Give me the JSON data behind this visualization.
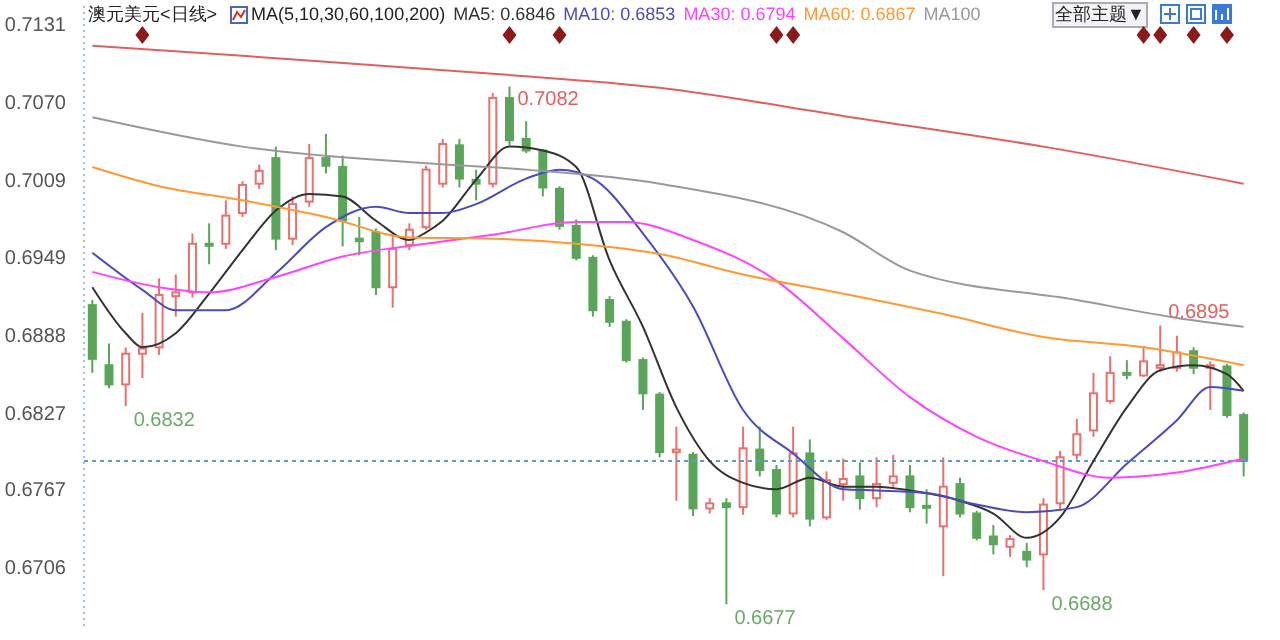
{
  "chart_data": {
    "type": "candlestick",
    "title": "澳元美元<日线>",
    "annotations": [
      "MA(5,10,30,60,100,200)",
      "全部主题▼",
      {
        "text": "0.7082",
        "y": 0.7082
      },
      "0.6832",
      "0.6677",
      "0.6688",
      {
        "text": "0.6895",
        "y": 0.6895
      }
    ],
    "categories": [
      null,
      null,
      null,
      null,
      null,
      null,
      null,
      null,
      null,
      null,
      null,
      null,
      null,
      null,
      null,
      null,
      null,
      null,
      null,
      null,
      null,
      null,
      null,
      null,
      null,
      null,
      null,
      null,
      null,
      null,
      null,
      null,
      null,
      null,
      null,
      null,
      null,
      null,
      null,
      null,
      null,
      null,
      null,
      null,
      null,
      null,
      null,
      null,
      null,
      null,
      null,
      null,
      null,
      null,
      null,
      null,
      null,
      null,
      null,
      null,
      null,
      null,
      null,
      null,
      null,
      null,
      null,
      null,
      null,
      null
    ],
    "ohlc": [
      [
        0.6911,
        0.6915,
        0.6858,
        0.6869
      ],
      [
        0.6864,
        0.6881,
        0.6846,
        0.6849
      ],
      [
        0.6849,
        0.6878,
        0.6832,
        0.6873
      ],
      [
        0.6873,
        0.6905,
        0.6854,
        0.6877
      ],
      [
        0.6878,
        0.6932,
        0.6872,
        0.6919
      ],
      [
        0.6918,
        0.6935,
        0.6902,
        0.6921
      ],
      [
        0.6921,
        0.6967,
        0.6917,
        0.6959
      ],
      [
        0.6959,
        0.6975,
        0.6943,
        0.6958
      ],
      [
        0.6959,
        0.6993,
        0.6955,
        0.6981
      ],
      [
        0.6983,
        0.7008,
        0.698,
        0.7005
      ],
      [
        0.7006,
        0.7021,
        0.7002,
        0.7016
      ],
      [
        0.7026,
        0.7035,
        0.6954,
        0.6963
      ],
      [
        0.6963,
        0.6996,
        0.6958,
        0.699
      ],
      [
        0.6992,
        0.7037,
        0.6988,
        0.7026
      ],
      [
        0.7026,
        0.7045,
        0.7014,
        0.702
      ],
      [
        0.7019,
        0.7028,
        0.6957,
        0.6977
      ],
      [
        0.6963,
        0.698,
        0.695,
        0.6961
      ],
      [
        0.6968,
        0.6971,
        0.6919,
        0.6925
      ],
      [
        0.6925,
        0.6967,
        0.6909,
        0.6955
      ],
      [
        0.6958,
        0.6975,
        0.6954,
        0.697
      ],
      [
        0.6972,
        0.702,
        0.697,
        0.7017
      ],
      [
        0.7006,
        0.7041,
        0.7003,
        0.7037
      ],
      [
        0.7036,
        0.7041,
        0.7003,
        0.701
      ],
      [
        0.7009,
        0.7017,
        0.6993,
        0.7006
      ],
      [
        0.7006,
        0.7077,
        0.7003,
        0.7073
      ],
      [
        0.7073,
        0.7082,
        0.7036,
        0.704
      ],
      [
        0.7041,
        0.7055,
        0.703,
        0.7032
      ],
      [
        0.7032,
        0.7033,
        0.6996,
        0.7003
      ],
      [
        0.7002,
        0.7004,
        0.697,
        0.6973
      ],
      [
        0.6973,
        0.6978,
        0.6946,
        0.6948
      ],
      [
        0.6948,
        0.695,
        0.6902,
        0.6907
      ],
      [
        0.6915,
        0.6918,
        0.6894,
        0.6898
      ],
      [
        0.6898,
        0.69,
        0.6866,
        0.6868
      ],
      [
        0.6868,
        0.687,
        0.6829,
        0.6842
      ],
      [
        0.6841,
        0.6843,
        0.6792,
        0.6796
      ],
      [
        0.6796,
        0.6816,
        0.6758,
        0.6798
      ],
      [
        0.6794,
        0.6796,
        0.6746,
        0.6752
      ],
      [
        0.6752,
        0.676,
        0.6748,
        0.6756
      ],
      [
        0.6756,
        0.676,
        0.6677,
        0.6753
      ],
      [
        0.6753,
        0.6816,
        0.6747,
        0.6799
      ],
      [
        0.6798,
        0.6816,
        0.6777,
        0.6782
      ],
      [
        0.6782,
        0.6786,
        0.6745,
        0.6748
      ],
      [
        0.6748,
        0.6816,
        0.6745,
        0.6795
      ],
      [
        0.6795,
        0.6806,
        0.6738,
        0.6744
      ],
      [
        0.6745,
        0.6781,
        0.6743,
        0.6774
      ],
      [
        0.6771,
        0.6791,
        0.6758,
        0.6775
      ],
      [
        0.6777,
        0.6788,
        0.6751,
        0.676
      ],
      [
        0.676,
        0.6792,
        0.6753,
        0.6771
      ],
      [
        0.6772,
        0.6794,
        0.6768,
        0.6777
      ],
      [
        0.6777,
        0.6786,
        0.6749,
        0.6753
      ],
      [
        0.6754,
        0.6767,
        0.674,
        0.6753
      ],
      [
        0.6738,
        0.6792,
        0.6699,
        0.6769
      ],
      [
        0.6771,
        0.6776,
        0.6745,
        0.6748
      ],
      [
        0.6748,
        0.675,
        0.6727,
        0.6729
      ],
      [
        0.673,
        0.6739,
        0.6716,
        0.6724
      ],
      [
        0.6722,
        0.6731,
        0.6714,
        0.6728
      ],
      [
        0.6718,
        0.6725,
        0.6706,
        0.6712
      ],
      [
        0.6716,
        0.676,
        0.6688,
        0.6755
      ],
      [
        0.6756,
        0.6797,
        0.675,
        0.6792
      ],
      [
        0.6794,
        0.6822,
        0.679,
        0.681
      ],
      [
        0.6813,
        0.6858,
        0.6808,
        0.6842
      ],
      [
        0.6836,
        0.6871,
        0.6834,
        0.6858
      ],
      [
        0.6858,
        0.6868,
        0.6853,
        0.6857
      ],
      [
        0.6856,
        0.6879,
        0.6855,
        0.6867
      ],
      [
        0.6862,
        0.6895,
        0.6859,
        0.6864
      ],
      [
        0.6862,
        0.6887,
        0.6859,
        0.6874
      ],
      [
        0.6875,
        0.6878,
        0.6857,
        0.6862
      ],
      [
        0.6862,
        0.6867,
        0.6829,
        0.6864
      ],
      [
        0.6863,
        0.6865,
        0.6823,
        0.6825
      ],
      [
        0.6825,
        0.6827,
        0.6777,
        0.6789
      ]
    ],
    "series": [
      {
        "type": "line",
        "name": "MA5: 0.6846",
        "color": "#333333",
        "values": [
          0.6925,
          null,
          0.6889,
          0.6878,
          null,
          0.6889,
          null,
          0.692,
          null,
          0.6954,
          null,
          0.6985,
          null,
          0.6998,
          null,
          0.6996,
          null,
          0.6977,
          null,
          0.6962,
          0.6968,
          0.6977,
          null,
          0.7009,
          null,
          0.7035,
          null,
          0.7032,
          null,
          0.7019,
          null,
          0.6946,
          null,
          0.6894,
          null,
          0.6831,
          null,
          0.6789,
          null,
          0.6772,
          null,
          0.6767,
          null,
          0.6776,
          null,
          0.6769,
          null,
          0.6769,
          null,
          0.6766,
          null,
          null,
          0.6758,
          null,
          0.6748,
          null,
          0.6729,
          null,
          0.6745,
          null,
          0.6789,
          null,
          0.6831,
          null,
          0.686,
          null,
          0.6864,
          null,
          0.6857,
          0.6844
        ]
      },
      {
        "type": "line",
        "name": "MA10: 0.6853",
        "color": "#4b4bc0",
        "values": [
          0.6952,
          null,
          null,
          0.6923,
          null,
          0.6907,
          null,
          null,
          0.6907,
          null,
          null,
          0.6936,
          null,
          null,
          0.6972,
          null,
          null,
          0.6988,
          null,
          0.6983,
          null,
          0.6983,
          null,
          0.699,
          null,
          null,
          0.701,
          null,
          0.7017,
          null,
          0.701,
          null,
          null,
          0.6967,
          null,
          null,
          0.691,
          null,
          null,
          0.6829,
          null,
          null,
          0.6795,
          null,
          null,
          0.6767,
          null,
          0.6766,
          null,
          null,
          0.6764,
          null,
          null,
          0.6755,
          null,
          null,
          0.6749,
          null,
          null,
          0.6753,
          null,
          null,
          0.6787,
          null,
          null,
          0.6821,
          null,
          0.6847,
          null,
          0.6844
        ]
      },
      {
        "type": "line",
        "name": "MA30: 0.6794",
        "color": "#ff44ff",
        "values": [
          0.6937,
          null,
          null,
          null,
          0.6925,
          null,
          null,
          0.6921,
          null,
          null,
          null,
          0.6933,
          null,
          null,
          null,
          0.6949,
          null,
          null,
          null,
          null,
          0.6959,
          null,
          null,
          null,
          0.6966,
          null,
          null,
          null,
          null,
          0.6976,
          null,
          null,
          0.6976,
          null,
          null,
          null,
          0.6962,
          null,
          null,
          null,
          null,
          0.693,
          null,
          null,
          null,
          0.6885,
          null,
          null,
          null,
          0.6839,
          null,
          null,
          null,
          0.6808,
          null,
          null,
          null,
          0.6789,
          null,
          null,
          null,
          0.6776,
          null,
          null,
          null,
          0.678,
          null,
          null,
          null,
          0.6791
        ]
      },
      {
        "type": "line",
        "name": "MA60: 0.6867",
        "color": "#ff9933",
        "values": [
          0.7019,
          null,
          null,
          null,
          0.7004,
          null,
          null,
          null,
          null,
          0.6993,
          null,
          null,
          null,
          null,
          0.698,
          null,
          null,
          null,
          null,
          0.6964,
          null,
          null,
          null,
          null,
          0.6963,
          null,
          null,
          null,
          null,
          0.6959,
          null,
          null,
          null,
          null,
          0.6951,
          null,
          null,
          null,
          null,
          0.6935,
          null,
          null,
          null,
          null,
          null,
          0.692,
          null,
          null,
          null,
          null,
          null,
          0.6904,
          null,
          null,
          null,
          null,
          null,
          0.6886,
          null,
          null,
          null,
          null,
          null,
          0.6878,
          null,
          null,
          null,
          null,
          null,
          0.6864
        ]
      },
      {
        "type": "line",
        "name": "MA100",
        "color": "#999999",
        "values": [
          0.7058,
          null,
          null,
          null,
          null,
          null,
          null,
          null,
          null,
          0.7035,
          null,
          null,
          null,
          null,
          null,
          null,
          null,
          null,
          null,
          null,
          0.7022,
          null,
          null,
          null,
          null,
          null,
          0.7017,
          null,
          null,
          null,
          null,
          null,
          null,
          null,
          0.7006,
          null,
          null,
          null,
          null,
          null,
          null,
          null,
          null,
          null,
          null,
          0.6968,
          null,
          null,
          null,
          0.6938,
          null,
          null,
          null,
          null,
          null,
          null,
          null,
          null,
          null,
          0.6915,
          null,
          null,
          null,
          null,
          null,
          0.6901,
          null,
          null,
          null,
          0.6894
        ]
      },
      {
        "type": "line",
        "color": "#e06060",
        "values": [
          0.7114,
          null,
          null,
          null,
          null,
          null,
          null,
          null,
          null,
          0.7106,
          null,
          null,
          null,
          null,
          null,
          null,
          null,
          null,
          null,
          null,
          null,
          null,
          null,
          null,
          0.7092,
          null,
          null,
          null,
          null,
          null,
          null,
          null,
          null,
          null,
          0.7081,
          null,
          null,
          null,
          null,
          null,
          null,
          null,
          null,
          null,
          null,
          0.7059,
          null,
          null,
          null,
          null,
          null,
          null,
          null,
          null,
          null,
          null,
          null,
          0.7035,
          null,
          null,
          null,
          null,
          null,
          null,
          null,
          null,
          null,
          null,
          null,
          0.7006
        ]
      }
    ],
    "ref_lines": [
      {
        "axis": "y",
        "value": 0.6789,
        "color": "#5b9bd5",
        "line_style": "dotted"
      }
    ],
    "ylim": [
      0.666,
      0.7145
    ],
    "yticks": [
      0.7131,
      {
        "value": 0.707,
        "label": "0.7070"
      },
      0.7009,
      0.6949,
      0.6888,
      0.6827,
      0.6767,
      0.6706
    ],
    "grid": false,
    "legend": "top"
  }
}
